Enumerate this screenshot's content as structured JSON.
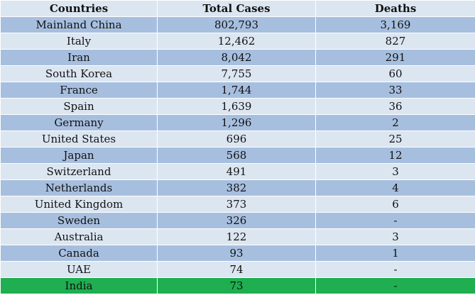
{
  "table": {
    "headers": [
      "Countries",
      "Total Cases",
      "Deaths"
    ],
    "rows": [
      {
        "country": "Mainland China",
        "cases": "802,793",
        "deaths": "3,169"
      },
      {
        "country": "Italy",
        "cases": "12,462",
        "deaths": "827"
      },
      {
        "country": "Iran",
        "cases": "8,042",
        "deaths": "291"
      },
      {
        "country": "South Korea",
        "cases": "7,755",
        "deaths": "60"
      },
      {
        "country": "France",
        "cases": "1,744",
        "deaths": "33"
      },
      {
        "country": "Spain",
        "cases": "1,639",
        "deaths": "36"
      },
      {
        "country": "Germany",
        "cases": "1,296",
        "deaths": "2"
      },
      {
        "country": "United States",
        "cases": "696",
        "deaths": "25"
      },
      {
        "country": "Japan",
        "cases": "568",
        "deaths": "12"
      },
      {
        "country": "Switzerland",
        "cases": "491",
        "deaths": "3"
      },
      {
        "country": "Netherlands",
        "cases": "382",
        "deaths": "4"
      },
      {
        "country": "United Kingdom",
        "cases": "373",
        "deaths": "6"
      },
      {
        "country": "Sweden",
        "cases": "326",
        "deaths": "-"
      },
      {
        "country": "Australia",
        "cases": "122",
        "deaths": "3"
      },
      {
        "country": "Canada",
        "cases": "93",
        "deaths": "1"
      },
      {
        "country": "UAE",
        "cases": "74",
        "deaths": "-"
      },
      {
        "country": "India",
        "cases": "73",
        "deaths": "-",
        "highlight": true
      }
    ]
  },
  "colors": {
    "header_bg": "#dce6f1",
    "row_dark": "#a7bfdf",
    "row_light": "#dce6f1",
    "highlight": "#1fae50"
  }
}
